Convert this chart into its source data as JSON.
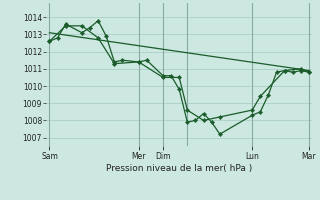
{
  "background_color": "#cce8e0",
  "grid_color": "#aacfc8",
  "line_color": "#1a5c2a",
  "marker_color": "#1a5c2a",
  "xlabel": "Pression niveau de la mer( hPa )",
  "yticks": [
    1007,
    1008,
    1009,
    1010,
    1011,
    1012,
    1013,
    1014
  ],
  "ylim": [
    1006.5,
    1014.8
  ],
  "xlim": [
    -0.2,
    16.2
  ],
  "day_tick_positions": [
    0.0,
    5.5,
    7.0,
    8.5,
    12.5,
    16.0
  ],
  "day_labels": [
    "Sam",
    "Mer",
    "Dim",
    "Lun",
    "Mar"
  ],
  "vline_x": [
    0.0,
    5.5,
    7.0,
    8.5,
    12.5,
    16.0
  ],
  "series1_x": [
    0.0,
    0.5,
    1.0,
    2.0,
    2.5,
    3.0,
    3.5,
    4.0,
    4.5,
    5.5,
    6.0,
    7.0,
    7.5,
    8.0,
    8.5,
    9.0,
    9.5,
    10.0,
    10.5,
    12.5,
    13.0,
    13.5,
    14.0,
    14.5,
    15.0,
    15.5,
    16.0
  ],
  "series1_y": [
    1012.6,
    1012.8,
    1013.6,
    1013.1,
    1013.4,
    1013.8,
    1012.9,
    1011.4,
    1011.5,
    1011.4,
    1011.5,
    1010.6,
    1010.6,
    1009.8,
    1007.9,
    1008.0,
    1008.4,
    1007.9,
    1007.2,
    1008.3,
    1008.5,
    1009.5,
    1010.8,
    1010.9,
    1010.8,
    1010.9,
    1010.8
  ],
  "series2_x": [
    0.0,
    1.0,
    2.0,
    3.0,
    4.0,
    5.5,
    7.0,
    8.0,
    8.5,
    9.5,
    10.5,
    12.5,
    13.0,
    14.5,
    15.5,
    16.0
  ],
  "series2_y": [
    1012.6,
    1013.5,
    1013.5,
    1012.8,
    1011.3,
    1011.4,
    1010.5,
    1010.5,
    1008.6,
    1008.0,
    1008.2,
    1008.6,
    1009.4,
    1010.9,
    1011.0,
    1010.8
  ],
  "series3_x": [
    0.0,
    16.0
  ],
  "series3_y": [
    1013.1,
    1010.9
  ]
}
